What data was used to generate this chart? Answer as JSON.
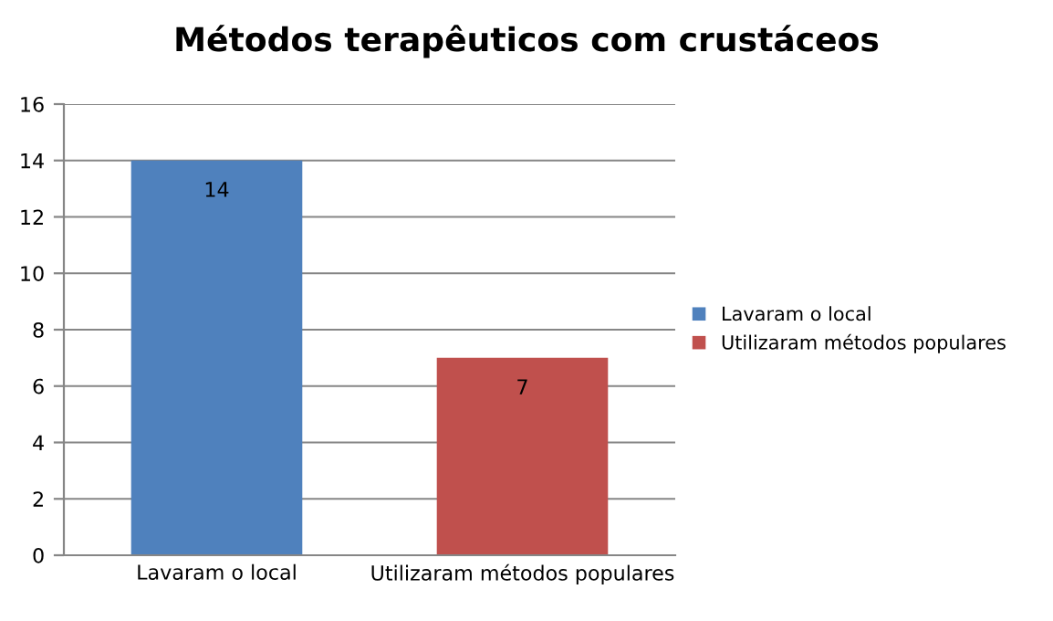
{
  "chart_data": {
    "type": "bar",
    "title": "Métodos terapêuticos com crustáceos",
    "categories": [
      "Lavaram o local",
      "Utilizaram métodos populares"
    ],
    "series": [
      {
        "name": "Lavaram o local",
        "color": "#4f81bd",
        "values": [
          14,
          null
        ]
      },
      {
        "name": "Utilizaram métodos populares",
        "color": "#c0504d",
        "values": [
          null,
          7
        ]
      }
    ],
    "ylim": [
      0,
      16
    ],
    "yticks": [
      0,
      2,
      4,
      6,
      8,
      10,
      12,
      14,
      16
    ],
    "grid": "y",
    "data_labels": true,
    "legend": "right"
  }
}
